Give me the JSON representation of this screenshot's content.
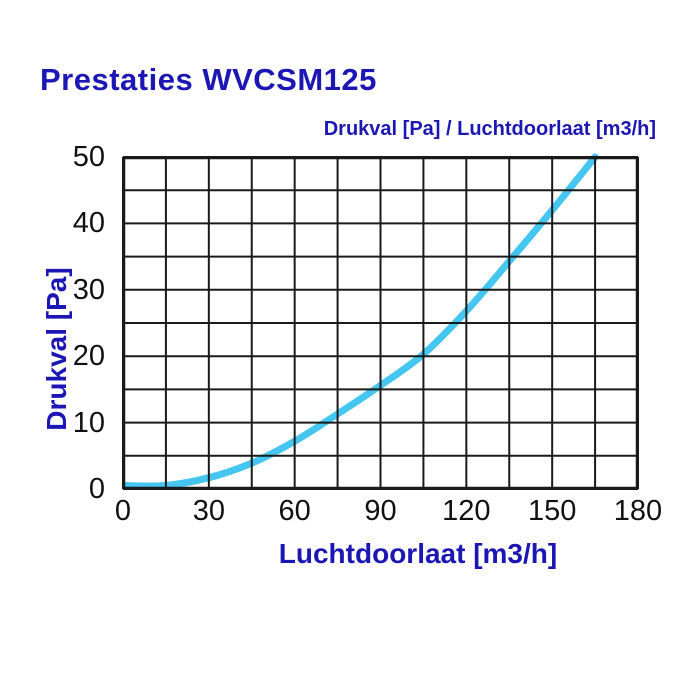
{
  "title": "Prestaties WVCSM125",
  "colors": {
    "accent_text": "#1c16b4",
    "curve": "#45c6f0",
    "grid": "#1a1a1a",
    "background": "#ffffff"
  },
  "chart_data": {
    "type": "line",
    "title": "Prestaties WVCSM125",
    "subtitle": "Drukval [Pa] / Luchtdoorlaat [m3/h]",
    "xlabel": "Luchtdoorlaat [m3/h]",
    "ylabel": "Drukval [Pa]",
    "xlim": [
      0,
      180
    ],
    "ylim": [
      0,
      50
    ],
    "x_ticks": [
      0,
      30,
      60,
      90,
      120,
      150,
      180
    ],
    "y_ticks": [
      0,
      10,
      20,
      30,
      40,
      50
    ],
    "x_minor_step": 15,
    "y_minor_step": 5,
    "grid": "minor-both-on-top",
    "legend_position": "none",
    "series": [
      {
        "name": "Drukval [Pa]",
        "color": "#45c6f0",
        "x": [
          0,
          15,
          30,
          45,
          60,
          75,
          90,
          105,
          120,
          135,
          150,
          165
        ],
        "y": [
          0,
          0.5,
          1.7,
          3.9,
          7.2,
          11.3,
          15.6,
          20.3,
          26.8,
          34.3,
          42,
          50
        ]
      }
    ]
  }
}
